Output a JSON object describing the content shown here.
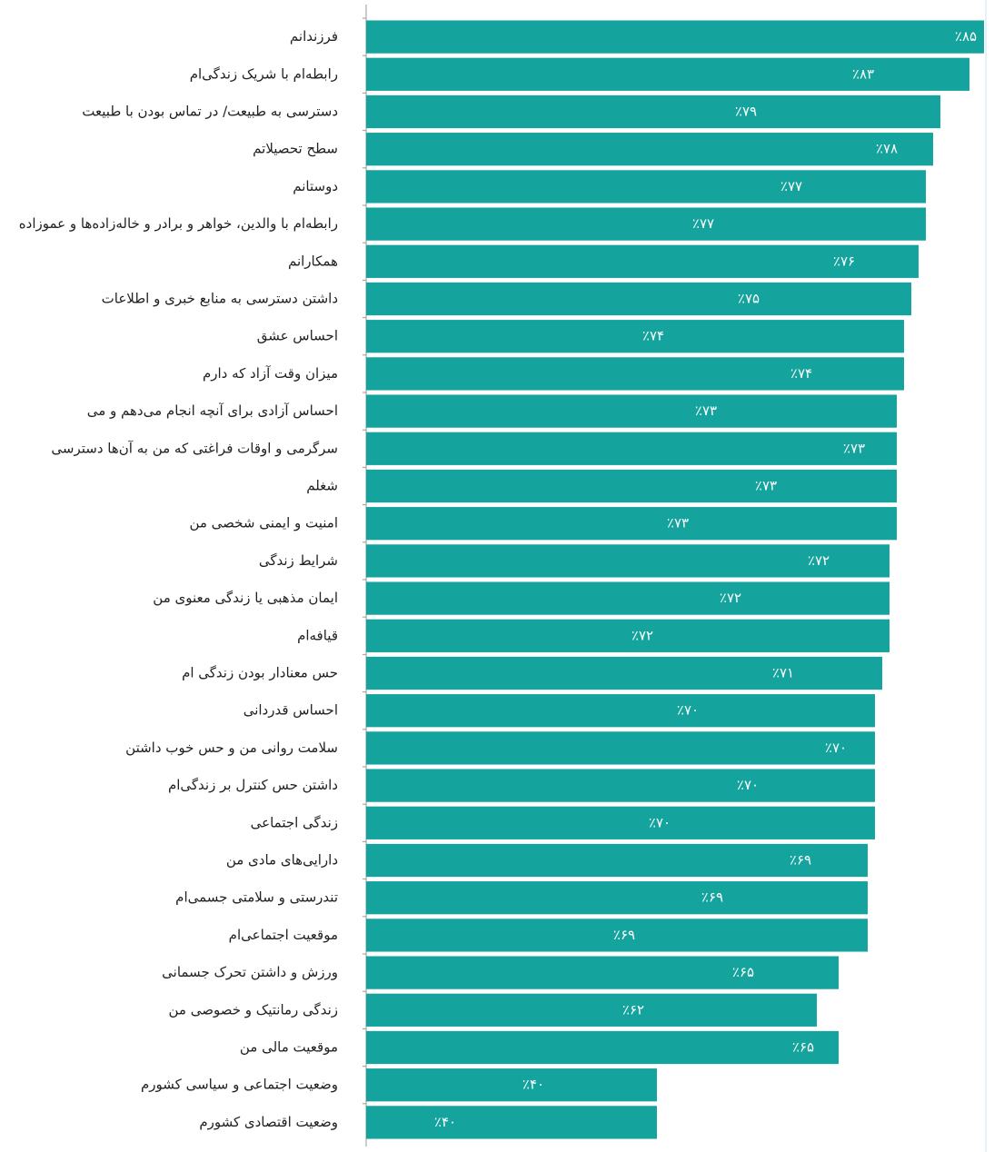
{
  "chart_data": {
    "type": "bar",
    "orientation": "horizontal",
    "color": "#14a39d",
    "xlim": [
      0,
      85
    ],
    "categories": [
      "فرزندانم",
      "رابطه‌ام با شریک زندگی‌ام",
      "دسترسی به طبیعت/ در تماس بودن با طبیعت",
      "سطح تحصیلاتم",
      "دوستانم",
      "رابطه‌ام با والدین، خواهر و برادر و خاله‌زاده‌ها و عموزاده",
      "همکارانم",
      "داشتن دسترسی به منابع خبری و اطلاعات",
      "احساس عشق",
      "میزان وقت آزاد که دارم",
      "احساس آزادی برای آنچه انجام می‌دهم و می",
      "سرگرمی و اوقات فراغتی که من به آن‌ها دسترسی",
      "شغلم",
      "امنیت و ایمنی شخصی من",
      "شرایط زندگی",
      "ایمان مذهبی یا زندگی معنوی من",
      "قیافه‌ام",
      "حس معنادار بودن زندگی ام",
      "احساس قدردانی",
      "سلامت روانی من و حس خوب داشتن",
      "داشتن حس کنترل بر زندگی‌ام",
      "زندگی اجتماعی",
      "دارایی‌های مادی من",
      "تندرستی و سلامتی جسمی‌ام",
      "موقعیت اجتماعی‌ام",
      "ورزش و داشتن تحرک جسمانی",
      "زندگی رمانتیک و خصوصی من",
      "موقعیت مالی من",
      "وضعیت اجتماعی و سیاسی کشورم",
      "وضعیت اقتصادی کشورم"
    ],
    "values": [
      85,
      83,
      79,
      78,
      77,
      77,
      76,
      75,
      74,
      74,
      73,
      73,
      73,
      73,
      72,
      72,
      72,
      71,
      70,
      70,
      70,
      70,
      69,
      69,
      69,
      65,
      62,
      65,
      40,
      40
    ],
    "value_labels": [
      "٪۸۵",
      "٪۸۳",
      "٪۷۹",
      "٪۷۸",
      "٪۷۷",
      "٪۷۷",
      "٪۷۶",
      "٪۷۵",
      "٪۷۴",
      "٪۷۴",
      "٪۷۳",
      "٪۷۳",
      "٪۷۳",
      "٪۷۳",
      "٪۷۲",
      "٪۷۲",
      "٪۷۲",
      "٪۷۱",
      "٪۷۰",
      "٪۷۰",
      "٪۷۰",
      "٪۷۰",
      "٪۶۹",
      "٪۶۹",
      "٪۶۹",
      "٪۶۵",
      "٪۶۲",
      "٪۶۵",
      "٪۴۰",
      "٪۴۰"
    ]
  }
}
